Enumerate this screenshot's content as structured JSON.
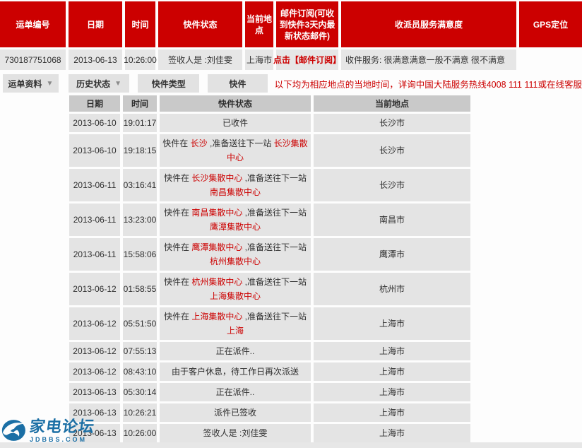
{
  "colors": {
    "header_red": "#cc0000",
    "link_red": "#cc0000",
    "cell_gray": "#e6e6e6",
    "history_header_gray": "#c9c9c9",
    "logo_blue": "#1b6fa5"
  },
  "top_table": {
    "headers": [
      "运单编号",
      "日期",
      "时间",
      "快件状态",
      "当前地点",
      "邮件订阅(可收到快件3天内最新状态邮件)",
      "收派员服务满意度",
      "GPS定位"
    ],
    "row": {
      "tracking_no": "730187751068",
      "date": "2013-06-13",
      "time": "10:26:00",
      "status": "签收人是 :刘佳雯",
      "location": "上海市",
      "subscribe_link": "点击【邮件订阅】",
      "satisfaction": "收件服务: 很满意满意一般不满意 很不满意",
      "gps": ""
    }
  },
  "tabs": [
    {
      "label": "运单资料",
      "has_arrow": true
    },
    {
      "label": "历史状态",
      "has_arrow": true
    },
    {
      "label": "快件类型",
      "has_arrow": false
    },
    {
      "label": "快件",
      "has_arrow": false
    }
  ],
  "notice": "以下均为相应地点的当地时间，详询中国大陆服务热线4008 111 111或在线客服",
  "history": {
    "headers": [
      "日期",
      "时间",
      "快件状态",
      "当前地点"
    ],
    "rows": [
      {
        "date": "2013-06-10",
        "time": "19:01:17",
        "status": [
          [
            "已收件",
            false
          ]
        ],
        "location": "长沙市"
      },
      {
        "date": "2013-06-10",
        "time": "19:18:15",
        "status": [
          [
            "快件在 ",
            false
          ],
          [
            "长沙",
            true
          ],
          [
            " ,准备送往下一站 ",
            false
          ],
          [
            "长沙集散中心",
            true
          ]
        ],
        "location": "长沙市"
      },
      {
        "date": "2013-06-11",
        "time": "03:16:41",
        "status": [
          [
            "快件在 ",
            false
          ],
          [
            "长沙集散中心",
            true
          ],
          [
            " ,准备送往下一站 ",
            false
          ],
          [
            "南昌集散中心",
            true
          ]
        ],
        "location": "长沙市"
      },
      {
        "date": "2013-06-11",
        "time": "13:23:00",
        "status": [
          [
            "快件在 ",
            false
          ],
          [
            "南昌集散中心",
            true
          ],
          [
            " ,准备送往下一站 ",
            false
          ],
          [
            "鹰潭集散中心",
            true
          ]
        ],
        "location": "南昌市"
      },
      {
        "date": "2013-06-11",
        "time": "15:58:06",
        "status": [
          [
            "快件在 ",
            false
          ],
          [
            "鹰潭集散中心",
            true
          ],
          [
            " ,准备送往下一站 ",
            false
          ],
          [
            "杭州集散中心",
            true
          ]
        ],
        "location": "鹰潭市"
      },
      {
        "date": "2013-06-12",
        "time": "01:58:55",
        "status": [
          [
            "快件在 ",
            false
          ],
          [
            "杭州集散中心",
            true
          ],
          [
            " ,准备送往下一站 ",
            false
          ],
          [
            "上海集散中心",
            true
          ]
        ],
        "location": "杭州市"
      },
      {
        "date": "2013-06-12",
        "time": "05:51:50",
        "status": [
          [
            "快件在 ",
            false
          ],
          [
            "上海集散中心",
            true
          ],
          [
            " ,准备送往下一站 ",
            false
          ],
          [
            "上海",
            true
          ]
        ],
        "location": "上海市"
      },
      {
        "date": "2013-06-12",
        "time": "07:55:13",
        "status": [
          [
            "正在派件..",
            false
          ]
        ],
        "location": "上海市"
      },
      {
        "date": "2013-06-12",
        "time": "08:43:10",
        "status": [
          [
            "由于客户休息，待工作日再次派送",
            false
          ]
        ],
        "location": "上海市"
      },
      {
        "date": "2013-06-13",
        "time": "05:30:14",
        "status": [
          [
            "正在派件..",
            false
          ]
        ],
        "location": "上海市"
      },
      {
        "date": "2013-06-13",
        "time": "10:26:21",
        "status": [
          [
            "派件已签收",
            false
          ]
        ],
        "location": "上海市"
      },
      {
        "date": "2013-06-13",
        "time": "10:26:00",
        "status": [
          [
            "签收人是 :刘佳雯",
            false
          ]
        ],
        "location": "上海市"
      }
    ]
  },
  "watermark": {
    "title": "家电论坛",
    "subtitle": "JDBBS.COM"
  }
}
